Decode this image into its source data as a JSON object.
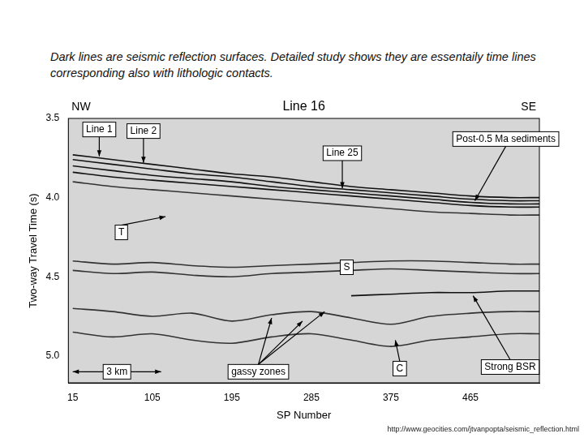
{
  "chart_data": {
    "type": "line",
    "title": "Line 16",
    "direction_labels": [
      "NW",
      "SE"
    ],
    "x_label": "SP Number",
    "y_label": "Two-way Travel Time (s)",
    "x": [
      15,
      60,
      105,
      150,
      195,
      240,
      285,
      330,
      375,
      420,
      465,
      510,
      543
    ],
    "series": [
      {
        "color": "#111111",
        "values": [
          3.73,
          3.76,
          3.79,
          3.82,
          3.85,
          3.87,
          3.9,
          3.93,
          3.95,
          3.97,
          3.99,
          4.0,
          4.0
        ]
      },
      {
        "color": "#111111",
        "values": [
          3.76,
          3.79,
          3.82,
          3.85,
          3.87,
          3.9,
          3.93,
          3.95,
          3.97,
          3.99,
          4.01,
          4.02,
          4.02
        ]
      },
      {
        "color": "#111111",
        "values": [
          3.8,
          3.83,
          3.86,
          3.88,
          3.9,
          3.93,
          3.95,
          3.97,
          3.99,
          4.01,
          4.03,
          4.04,
          4.04
        ]
      },
      {
        "color": "#111111",
        "values": [
          3.84,
          3.87,
          3.89,
          3.91,
          3.93,
          3.95,
          3.97,
          3.99,
          4.01,
          4.03,
          4.05,
          4.06,
          4.06
        ]
      },
      {
        "color": "#333333",
        "values": [
          3.9,
          3.93,
          3.95,
          3.97,
          3.99,
          4.01,
          4.03,
          4.05,
          4.07,
          4.09,
          4.1,
          4.11,
          4.11
        ]
      },
      {
        "color": "#333333",
        "values": [
          4.4,
          4.42,
          4.41,
          4.43,
          4.44,
          4.43,
          4.42,
          4.41,
          4.4,
          4.4,
          4.41,
          4.42,
          4.42
        ]
      },
      {
        "color": "#333333",
        "values": [
          4.46,
          4.48,
          4.47,
          4.49,
          4.5,
          4.48,
          4.47,
          4.46,
          4.45,
          4.46,
          4.47,
          4.48,
          4.48
        ]
      },
      {
        "color": "#111111",
        "values": [
          null,
          null,
          null,
          null,
          null,
          null,
          null,
          4.62,
          4.61,
          4.6,
          4.6,
          4.59,
          4.59
        ]
      },
      {
        "color": "#333333",
        "values": [
          4.7,
          4.72,
          4.75,
          4.73,
          4.78,
          4.74,
          4.72,
          4.76,
          4.8,
          4.75,
          4.73,
          4.72,
          4.72
        ]
      },
      {
        "color": "#333333",
        "values": [
          4.85,
          4.88,
          4.86,
          4.9,
          4.92,
          4.88,
          4.86,
          4.9,
          4.94,
          4.9,
          4.88,
          4.86,
          4.86
        ]
      }
    ],
    "xlim": [
      10,
      543
    ],
    "xticks": [
      15,
      105,
      195,
      285,
      375,
      465
    ],
    "ylim": [
      3.5,
      5.17
    ],
    "yticks": [
      3.5,
      {
        "value": 4,
        "label": "4.0"
      },
      4.5,
      {
        "value": 5,
        "label": "5.0"
      }
    ],
    "grid": false,
    "annotations": [
      {
        "text": "Line 1",
        "x": 45,
        "y": 3.57,
        "arrows": [
          [
            45,
            3.74
          ]
        ]
      },
      {
        "text": "Line 2",
        "x": 95,
        "y": 3.58,
        "arrows": [
          [
            95,
            3.78
          ]
        ]
      },
      {
        "text": "Line 25",
        "x": 320,
        "y": 3.72,
        "arrows": [
          [
            320,
            3.94
          ]
        ]
      },
      {
        "text": "Post-0.5 Ma sediments",
        "x": 505,
        "y": 3.63,
        "arrows": [
          [
            470,
            4.02
          ]
        ]
      },
      {
        "text": "T",
        "x": 70,
        "y": 4.22,
        "arrows": [
          [
            120,
            4.12
          ]
        ]
      },
      {
        "text": "S",
        "x": 325,
        "y": 4.44,
        "arrows": []
      },
      {
        "text": "gassy zones",
        "x": 225,
        "y": 5.1,
        "arrows": [
          [
            240,
            4.76
          ],
          [
            275,
            4.78
          ],
          [
            300,
            4.72
          ]
        ]
      },
      {
        "text": "C",
        "x": 385,
        "y": 5.08,
        "arrows": [
          [
            380,
            4.9
          ]
        ]
      },
      {
        "text": "Strong BSR",
        "x": 510,
        "y": 5.07,
        "arrows": [
          [
            468,
            4.62
          ]
        ]
      }
    ],
    "scale_bar": {
      "text": "3 km",
      "x": [
        15,
        115
      ],
      "y": 5.1
    }
  },
  "caption": "Dark lines are seismic reflection surfaces.  Detailed study shows they are essentaily time lines corresponding also with lithologic contacts.",
  "source": "http://www.geocities.com/jtvanpopta/seismic_reflection.html"
}
